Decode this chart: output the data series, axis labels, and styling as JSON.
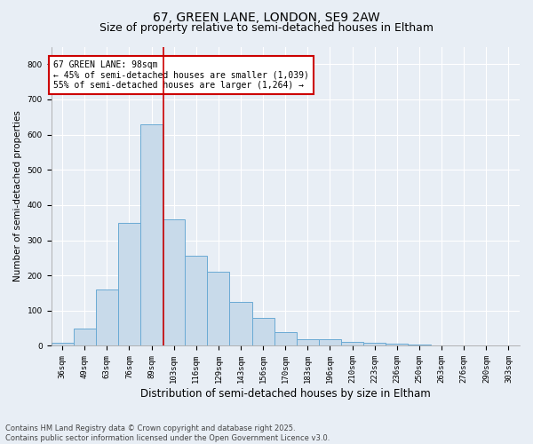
{
  "title1": "67, GREEN LANE, LONDON, SE9 2AW",
  "title2": "Size of property relative to semi-detached houses in Eltham",
  "xlabel": "Distribution of semi-detached houses by size in Eltham",
  "ylabel": "Number of semi-detached properties",
  "categories": [
    "36sqm",
    "49sqm",
    "63sqm",
    "76sqm",
    "89sqm",
    "103sqm",
    "116sqm",
    "129sqm",
    "143sqm",
    "156sqm",
    "170sqm",
    "183sqm",
    "196sqm",
    "210sqm",
    "223sqm",
    "236sqm",
    "250sqm",
    "263sqm",
    "276sqm",
    "290sqm",
    "303sqm"
  ],
  "values": [
    10,
    50,
    160,
    350,
    630,
    360,
    255,
    210,
    125,
    80,
    40,
    20,
    20,
    12,
    8,
    5,
    3,
    1,
    0,
    1,
    0
  ],
  "bar_color": "#c8daea",
  "bar_edge_color": "#6aaad4",
  "vline_color": "#cc0000",
  "vline_x_index": 4.55,
  "annotation_text": "67 GREEN LANE: 98sqm\n← 45% of semi-detached houses are smaller (1,039)\n55% of semi-detached houses are larger (1,264) →",
  "annotation_box_color": "#ffffff",
  "annotation_box_edge": "#cc0000",
  "footnote": "Contains HM Land Registry data © Crown copyright and database right 2025.\nContains public sector information licensed under the Open Government Licence v3.0.",
  "ylim": [
    0,
    850
  ],
  "yticks": [
    0,
    100,
    200,
    300,
    400,
    500,
    600,
    700,
    800
  ],
  "background_color": "#e8eef5",
  "plot_bg_color": "#e8eef5",
  "grid_color": "#ffffff",
  "title_fontsize": 10,
  "subtitle_fontsize": 9,
  "tick_fontsize": 6.5,
  "ylabel_fontsize": 7.5,
  "xlabel_fontsize": 8.5,
  "annotation_fontsize": 7,
  "footnote_fontsize": 6
}
